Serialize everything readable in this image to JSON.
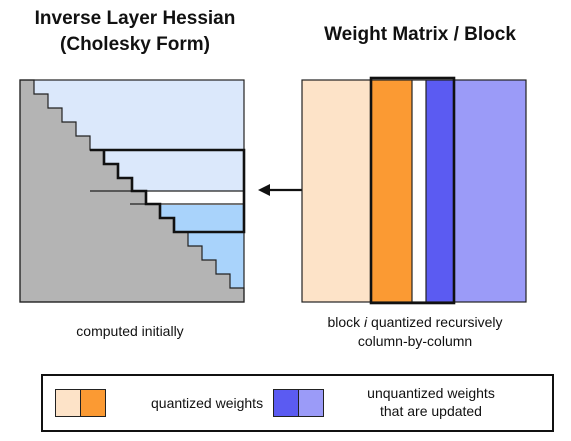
{
  "left_panel": {
    "title_line1": "Inverse Layer Hessian",
    "title_line2": "(Cholesky Form)",
    "caption": "computed initially"
  },
  "right_panel": {
    "title": "Weight Matrix / Block",
    "caption_pre": "block ",
    "caption_var": "i",
    "caption_post": " quantized recursively",
    "caption_line2": "column-by-column"
  },
  "legend": {
    "quantized_label": "quantized weights",
    "unquantized_line1": "unquantized weights",
    "unquantized_line2": "that are updated"
  },
  "colors": {
    "hessian_light_blue": "#dbe8fb",
    "hessian_mid_blue": "#a9d3fb",
    "hessian_gray": "#b4b4b4",
    "quantized_light": "#fde3c8",
    "quantized_orange": "#fb9a33",
    "unquantized_dark": "#5b5bf2",
    "unquantized_light": "#9b9bf8",
    "border": "#111111"
  }
}
